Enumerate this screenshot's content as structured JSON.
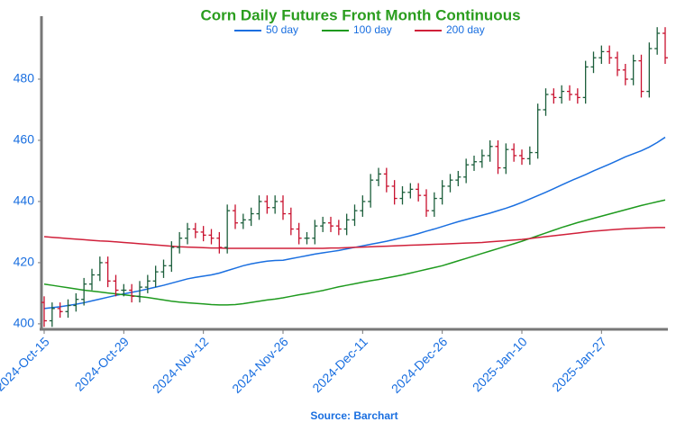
{
  "chart_data": {
    "type": "ohlc",
    "title": "Corn Daily Futures Front Month Continuous",
    "source": "Source: Barchart",
    "categories": [
      "2024-Oct-15",
      null,
      null,
      null,
      null,
      null,
      null,
      null,
      null,
      null,
      "2024-Oct-29",
      null,
      null,
      null,
      null,
      null,
      null,
      null,
      null,
      null,
      "2024-Nov-12",
      null,
      null,
      null,
      null,
      null,
      null,
      null,
      null,
      null,
      "2024-Nov-26",
      null,
      null,
      null,
      null,
      null,
      null,
      null,
      null,
      null,
      "2024-Dec-11",
      null,
      null,
      null,
      null,
      null,
      null,
      null,
      null,
      null,
      "2024-Dec-26",
      null,
      null,
      null,
      null,
      null,
      null,
      null,
      null,
      null,
      "2025-Jan-10",
      null,
      null,
      null,
      null,
      null,
      null,
      null,
      null,
      null,
      "2025-Jan-27",
      null,
      null,
      null,
      null,
      null,
      null,
      null,
      null
    ],
    "open": [
      407,
      401,
      405,
      404,
      406,
      408,
      413,
      416,
      420,
      414,
      411,
      411,
      409,
      412,
      414,
      417,
      419,
      425,
      428,
      431,
      430,
      429,
      428,
      425,
      437,
      433,
      434,
      436,
      440,
      438,
      440,
      436,
      431,
      428,
      428,
      432,
      433,
      432,
      431,
      434,
      437,
      440,
      447,
      449,
      445,
      441,
      443,
      444,
      442,
      437,
      441,
      445,
      447,
      448,
      452,
      453,
      455,
      458,
      451,
      457,
      455,
      454,
      456,
      470,
      475,
      474,
      476,
      475,
      474,
      484,
      487,
      489,
      487,
      483,
      480,
      486,
      476,
      490,
      495
    ],
    "high": [
      409,
      407,
      407,
      408,
      410,
      415,
      418,
      422,
      422,
      416,
      413,
      413,
      414,
      416,
      419,
      421,
      427,
      430,
      433,
      433,
      432,
      431,
      430,
      439,
      439,
      436,
      438,
      442,
      442,
      442,
      442,
      438,
      433,
      430,
      434,
      435,
      435,
      434,
      436,
      439,
      442,
      449,
      451,
      451,
      447,
      445,
      446,
      446,
      444,
      443,
      447,
      449,
      450,
      454,
      455,
      457,
      460,
      460,
      459,
      459,
      457,
      458,
      472,
      477,
      477,
      478,
      478,
      477,
      486,
      489,
      491,
      491,
      489,
      485,
      488,
      488,
      492,
      497,
      497
    ],
    "low": [
      399,
      399,
      402,
      402,
      404,
      406,
      411,
      414,
      412,
      409,
      409,
      407,
      407,
      410,
      412,
      415,
      417,
      423,
      426,
      428,
      427,
      426,
      423,
      423,
      431,
      431,
      432,
      434,
      436,
      436,
      434,
      429,
      426,
      426,
      426,
      430,
      430,
      429,
      429,
      432,
      435,
      438,
      445,
      443,
      439,
      439,
      441,
      440,
      435,
      435,
      439,
      443,
      445,
      446,
      450,
      451,
      453,
      449,
      449,
      453,
      452,
      452,
      454,
      468,
      472,
      472,
      473,
      472,
      472,
      482,
      485,
      485,
      481,
      478,
      478,
      474,
      474,
      488,
      485
    ],
    "close": [
      401,
      405,
      404,
      406,
      408,
      413,
      416,
      420,
      414,
      411,
      411,
      409,
      412,
      414,
      417,
      419,
      425,
      428,
      431,
      430,
      429,
      428,
      425,
      437,
      433,
      434,
      436,
      440,
      438,
      440,
      436,
      431,
      428,
      428,
      432,
      433,
      432,
      431,
      434,
      437,
      440,
      447,
      449,
      445,
      441,
      443,
      444,
      442,
      437,
      441,
      445,
      447,
      448,
      452,
      453,
      455,
      458,
      451,
      457,
      455,
      454,
      456,
      470,
      475,
      474,
      476,
      475,
      474,
      484,
      487,
      489,
      487,
      483,
      480,
      486,
      476,
      490,
      495,
      487
    ],
    "up_color": "#1b5e3b",
    "down_color": "#c8102e",
    "series": [
      {
        "name": "50 day",
        "color": "#1a6fe0",
        "values": [
          405,
          405.3,
          405.6,
          406,
          406.4,
          406.9,
          407.5,
          408.1,
          408.7,
          409.3,
          409.8,
          410.3,
          410.8,
          411.4,
          412,
          412.6,
          413.3,
          414,
          414.7,
          415.2,
          415.6,
          416,
          416.6,
          417.4,
          418.2,
          419,
          419.6,
          420.1,
          420.5,
          420.7,
          420.8,
          421.3,
          421.8,
          422.3,
          422.8,
          423.2,
          423.6,
          424,
          424.5,
          425,
          425.5,
          426,
          426.5,
          427,
          427.6,
          428.2,
          428.8,
          429.5,
          430.3,
          431,
          431.8,
          432.6,
          433.4,
          434.1,
          434.8,
          435.5,
          436.2,
          437,
          437.8,
          438.7,
          439.7,
          440.8,
          441.9,
          443,
          444.2,
          445.4,
          446.6,
          447.7,
          448.8,
          450,
          451.1,
          452.2,
          453.4,
          454.6,
          455.6,
          456.6,
          457.8,
          459.3,
          461
        ]
      },
      {
        "name": "100 day",
        "color": "#1e9a1e",
        "values": [
          413,
          412.6,
          412.2,
          411.8,
          411.4,
          411,
          410.7,
          410.4,
          410.1,
          409.8,
          409.5,
          409.2,
          408.9,
          408.6,
          408.2,
          407.8,
          407.4,
          407.1,
          406.9,
          406.7,
          406.5,
          406.3,
          406.2,
          406.2,
          406.3,
          406.6,
          407,
          407.4,
          407.8,
          408.1,
          408.5,
          409,
          409.5,
          409.9,
          410.4,
          410.9,
          411.5,
          412.1,
          412.6,
          413.1,
          413.6,
          414.1,
          414.5,
          415,
          415.5,
          416,
          416.6,
          417.2,
          417.8,
          418.4,
          419,
          419.8,
          420.6,
          421.4,
          422.2,
          423,
          423.8,
          424.6,
          425.4,
          426.2,
          427,
          427.9,
          428.8,
          429.7,
          430.6,
          431.5,
          432.3,
          433.1,
          433.8,
          434.5,
          435.2,
          435.9,
          436.6,
          437.3,
          438,
          438.7,
          439.3,
          439.9,
          440.5
        ]
      },
      {
        "name": "200 day",
        "color": "#d0203a",
        "values": [
          428.5,
          428.3,
          428.1,
          427.9,
          427.7,
          427.5,
          427.3,
          427.1,
          427,
          426.8,
          426.6,
          426.4,
          426.2,
          426,
          425.8,
          425.6,
          425.4,
          425.2,
          425.1,
          425,
          424.9,
          424.8,
          424.8,
          424.7,
          424.7,
          424.7,
          424.7,
          424.7,
          424.7,
          424.7,
          424.7,
          424.7,
          424.7,
          424.7,
          424.7,
          424.7,
          424.8,
          424.8,
          424.9,
          425,
          425.1,
          425.2,
          425.3,
          425.4,
          425.5,
          425.6,
          425.7,
          425.8,
          425.9,
          426,
          426.1,
          426.2,
          426.3,
          426.4,
          426.5,
          426.6,
          426.8,
          427,
          427.2,
          427.4,
          427.6,
          427.9,
          428.2,
          428.5,
          428.8,
          429.1,
          429.4,
          429.7,
          430,
          430.3,
          430.5,
          430.7,
          430.9,
          431.1,
          431.2,
          431.3,
          431.4,
          431.5,
          431.5
        ]
      }
    ],
    "ylim": [
      398.5,
      500
    ],
    "yticks": [
      400,
      420,
      440,
      460,
      480
    ],
    "legend": "top"
  }
}
